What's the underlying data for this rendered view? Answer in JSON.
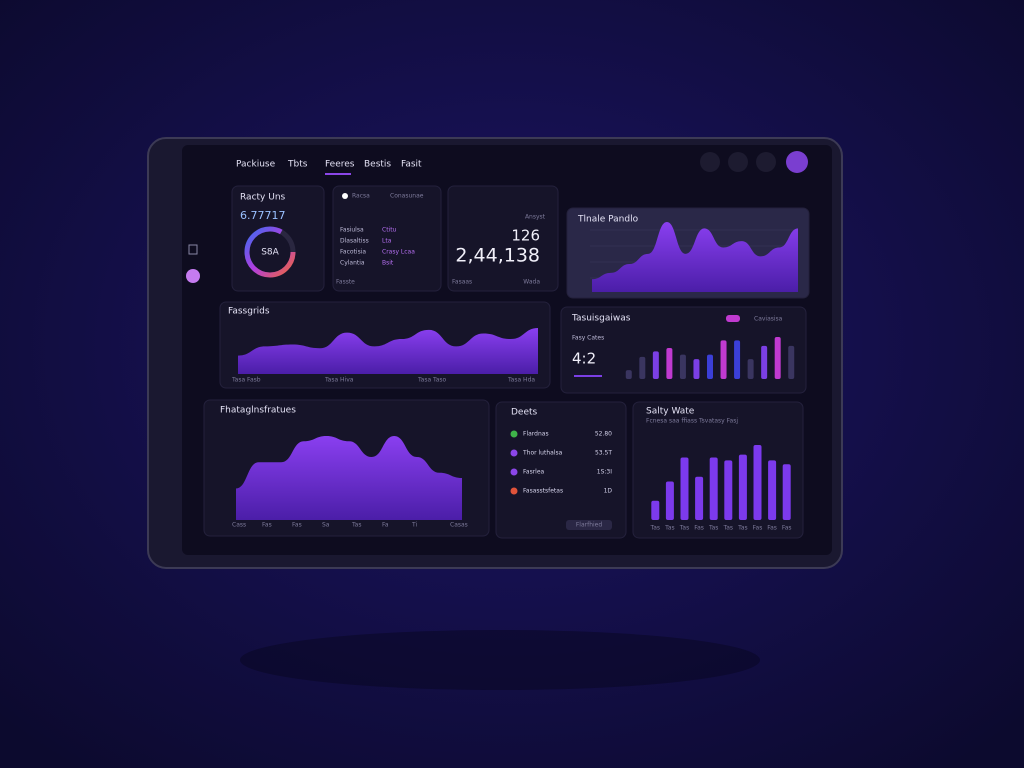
{
  "nav": {
    "tabs": [
      "Packiuse",
      "Tbts",
      "Feeres",
      "Bestis",
      "Fasit"
    ],
    "active": 2
  },
  "ready": {
    "title": "Racty Uns",
    "value": "6.77717",
    "ring_label": "S8A"
  },
  "list": {
    "header": [
      "Racsa",
      "Conasunae"
    ],
    "rows": [
      [
        "Fasiulsa",
        "Ctitu"
      ],
      [
        "Dlasaltiss",
        "Lta"
      ],
      [
        "Facotisia",
        "Crasy Lcaa"
      ],
      [
        "Cylantia",
        "Bsit"
      ]
    ],
    "footer": "Fasste"
  },
  "kpi": {
    "label": "Ansyst",
    "value1": "126",
    "value2": "2,44,138",
    "footer": [
      "Fasaas",
      "Wada"
    ]
  },
  "trends": {
    "title": "Tlnale Pandlo",
    "values": [
      10,
      15,
      22,
      30,
      55,
      30,
      50,
      35,
      40,
      28,
      35,
      50
    ]
  },
  "fassgrids": {
    "title": "Fassgrids",
    "x_labels": [
      "Tasa Fasb",
      "Tasa Hiva",
      "Tasa Taso",
      "Tasa Hda"
    ],
    "values": [
      20,
      30,
      32,
      28,
      45,
      30,
      38,
      48,
      30,
      44,
      38,
      50
    ]
  },
  "team": {
    "title": "Tasuisgaiwas",
    "legend": "Caviasisa",
    "caption": "Fasy Cates",
    "value": "4:2",
    "values": [
      8,
      20,
      25,
      28,
      22,
      18,
      22,
      35,
      35,
      18,
      30,
      38,
      30
    ],
    "colors": [
      "#3a3560",
      "#3a3560",
      "#7b3fe4",
      "#c03ad0",
      "#3a3560",
      "#7b3fe4",
      "#3b3fd8",
      "#c03ad0",
      "#3b3fd8",
      "#3a3560",
      "#7b3fe4",
      "#c03ad0",
      "#3a3560"
    ]
  },
  "flow": {
    "title": "Fhataglnsfratues",
    "x_labels": [
      "Cass",
      "Fas",
      "Fas",
      "Sa",
      "Tas",
      "Fa",
      "Ti",
      "Casas"
    ],
    "values": [
      30,
      55,
      55,
      75,
      80,
      75,
      60,
      80,
      60,
      45,
      40
    ]
  },
  "dots": {
    "title": "Deets",
    "items": [
      {
        "label": "Flardnas",
        "value": "52.80",
        "color": "#3fb44a"
      },
      {
        "label": "Thor luthalsa",
        "value": "53.5T",
        "color": "#8b46e8"
      },
      {
        "label": "Fasrlea",
        "value": "1S:3I",
        "color": "#8b46e8"
      },
      {
        "label": "Fasasstsfetas",
        "value": "1D",
        "color": "#e0533a"
      }
    ],
    "button": "Flarfhied"
  },
  "salty": {
    "title": "Salty Wate",
    "subtitle": "Fcnesa saa ffiass Tsvatasy Fasj",
    "x_labels": [
      "Tas",
      "Tas",
      "Tas",
      "Fas",
      "Tas",
      "Tas",
      "Tas",
      "Fas",
      "Fas",
      "Fas"
    ],
    "values": [
      20,
      40,
      65,
      45,
      65,
      62,
      68,
      78,
      62,
      58
    ],
    "color": "#7c3aed"
  }
}
